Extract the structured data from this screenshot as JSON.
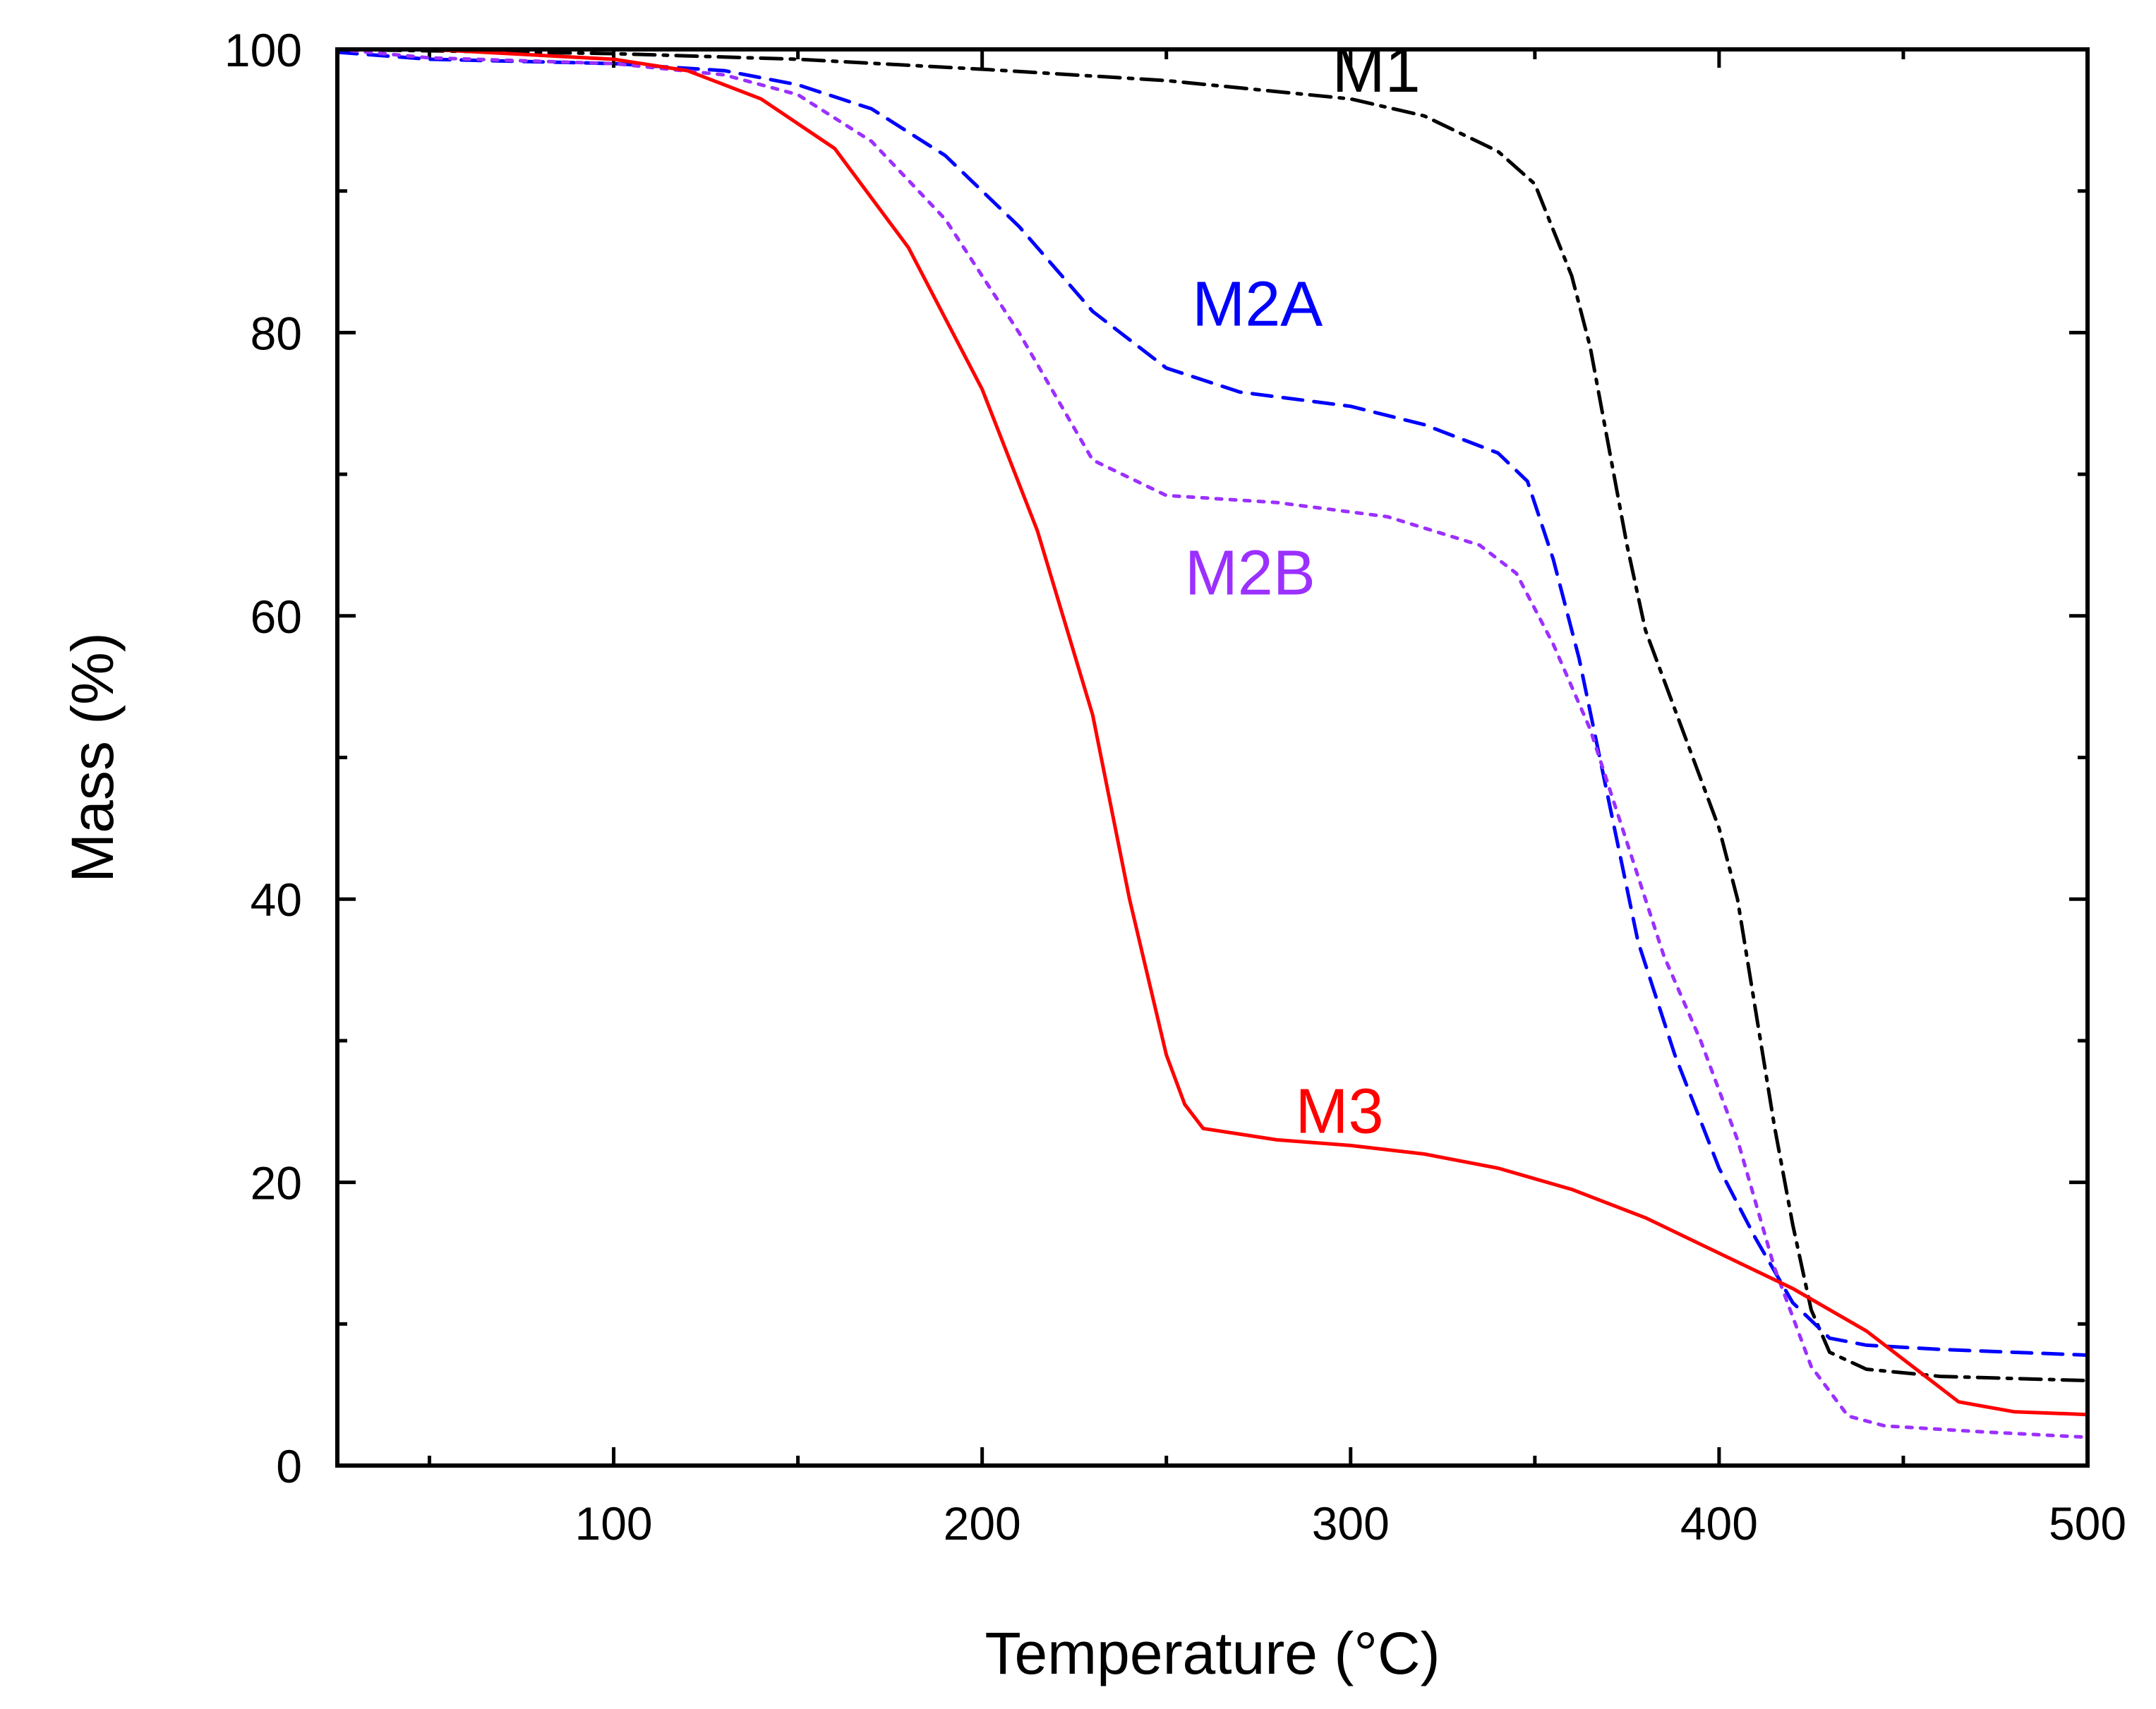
{
  "chart_data": {
    "type": "line",
    "xlabel": "Temperature (°C)",
    "ylabel": "Mass (%)",
    "xlim": [
      25,
      500
    ],
    "ylim": [
      0,
      100
    ],
    "xticks": [
      100,
      200,
      300,
      400,
      500
    ],
    "yticks": [
      0,
      20,
      40,
      60,
      80,
      100
    ],
    "grid": false,
    "legend": "none",
    "series": [
      {
        "name": "M1",
        "color": "#000000",
        "dash": "dashdot",
        "label_at": [
          295,
          97
        ],
        "points": [
          [
            25,
            100
          ],
          [
            50,
            99.9
          ],
          [
            100,
            99.7
          ],
          [
            150,
            99.3
          ],
          [
            200,
            98.6
          ],
          [
            250,
            97.8
          ],
          [
            300,
            96.5
          ],
          [
            320,
            95.3
          ],
          [
            340,
            92.8
          ],
          [
            350,
            90.5
          ],
          [
            360,
            84
          ],
          [
            365,
            79
          ],
          [
            370,
            72
          ],
          [
            375,
            65
          ],
          [
            380,
            59
          ],
          [
            390,
            52
          ],
          [
            400,
            45
          ],
          [
            405,
            40
          ],
          [
            410,
            32
          ],
          [
            415,
            24
          ],
          [
            420,
            17
          ],
          [
            425,
            11
          ],
          [
            430,
            8
          ],
          [
            440,
            6.8
          ],
          [
            460,
            6.3
          ],
          [
            500,
            6.0
          ]
        ]
      },
      {
        "name": "M2A",
        "color": "#0000ff",
        "dash": "dashed",
        "label_at": [
          257,
          80.5
        ],
        "points": [
          [
            25,
            99.8
          ],
          [
            50,
            99.3
          ],
          [
            100,
            99.0
          ],
          [
            130,
            98.5
          ],
          [
            150,
            97.5
          ],
          [
            170,
            95.8
          ],
          [
            190,
            92.5
          ],
          [
            210,
            87.5
          ],
          [
            230,
            81.5
          ],
          [
            250,
            77.5
          ],
          [
            270,
            75.8
          ],
          [
            300,
            74.8
          ],
          [
            320,
            73.5
          ],
          [
            340,
            71.5
          ],
          [
            348,
            69.5
          ],
          [
            355,
            64
          ],
          [
            362,
            57
          ],
          [
            370,
            47
          ],
          [
            378,
            37
          ],
          [
            388,
            29
          ],
          [
            400,
            21
          ],
          [
            410,
            16
          ],
          [
            420,
            11.5
          ],
          [
            430,
            9
          ],
          [
            440,
            8.5
          ],
          [
            460,
            8.2
          ],
          [
            500,
            7.8
          ]
        ]
      },
      {
        "name": "M2B",
        "color": "#9b30ff",
        "dash": "dotted",
        "label_at": [
          255,
          61.5
        ],
        "points": [
          [
            25,
            100
          ],
          [
            50,
            99.4
          ],
          [
            100,
            99.0
          ],
          [
            130,
            98.2
          ],
          [
            150,
            96.8
          ],
          [
            170,
            93.5
          ],
          [
            190,
            88
          ],
          [
            210,
            80
          ],
          [
            230,
            71
          ],
          [
            250,
            68.5
          ],
          [
            280,
            68
          ],
          [
            310,
            67
          ],
          [
            335,
            65
          ],
          [
            345,
            63
          ],
          [
            355,
            58
          ],
          [
            365,
            52
          ],
          [
            375,
            44
          ],
          [
            385,
            36
          ],
          [
            395,
            30
          ],
          [
            405,
            23
          ],
          [
            415,
            14
          ],
          [
            425,
            7
          ],
          [
            435,
            3.5
          ],
          [
            445,
            2.8
          ],
          [
            470,
            2.4
          ],
          [
            500,
            2.0
          ]
        ]
      },
      {
        "name": "M3",
        "color": "#ff0000",
        "dash": "solid",
        "label_at": [
          285,
          23.5
        ],
        "points": [
          [
            25,
            100
          ],
          [
            50,
            100
          ],
          [
            100,
            99.3
          ],
          [
            120,
            98.5
          ],
          [
            140,
            96.5
          ],
          [
            160,
            93
          ],
          [
            180,
            86
          ],
          [
            200,
            76
          ],
          [
            215,
            66
          ],
          [
            230,
            53
          ],
          [
            240,
            40
          ],
          [
            250,
            29
          ],
          [
            255,
            25.5
          ],
          [
            260,
            23.8
          ],
          [
            280,
            23
          ],
          [
            300,
            22.6
          ],
          [
            320,
            22
          ],
          [
            340,
            21
          ],
          [
            360,
            19.5
          ],
          [
            380,
            17.5
          ],
          [
            400,
            15
          ],
          [
            420,
            12.5
          ],
          [
            440,
            9.5
          ],
          [
            455,
            6.5
          ],
          [
            465,
            4.5
          ],
          [
            480,
            3.8
          ],
          [
            500,
            3.6
          ]
        ]
      }
    ]
  }
}
